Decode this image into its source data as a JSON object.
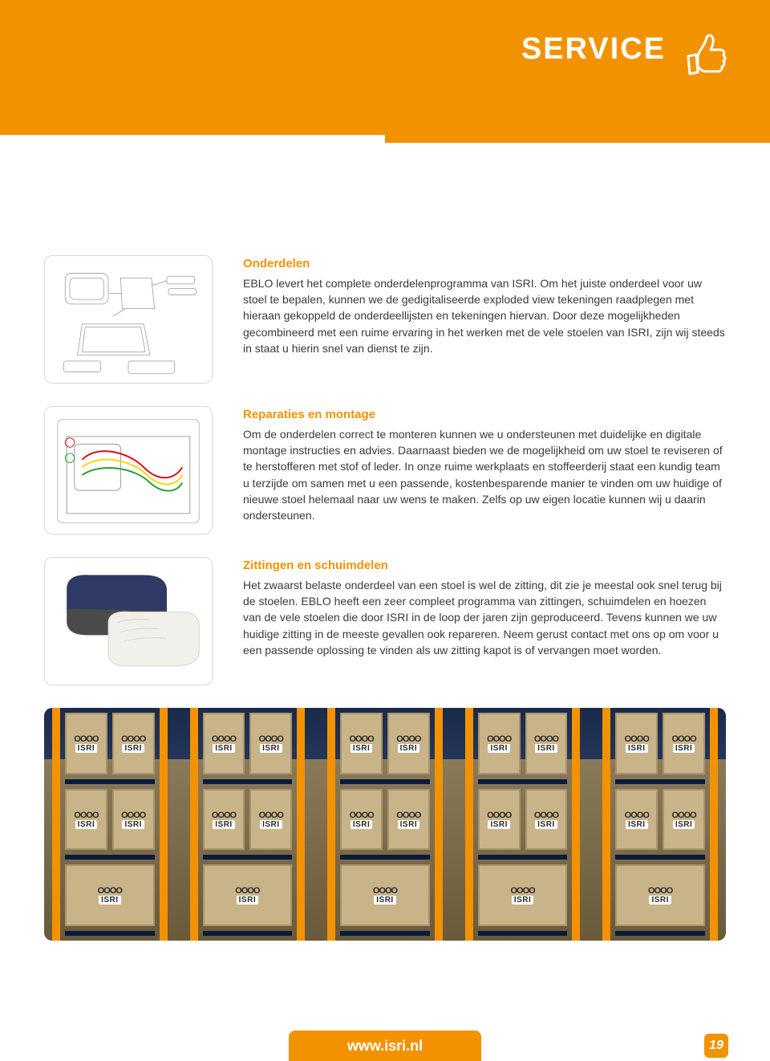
{
  "colors": {
    "accent": "#f39200",
    "text": "#3a3a3a",
    "heading": "#f39200",
    "thumb_border": "#d8d8d8",
    "box_fill": "#c9b48a",
    "box_border": "#a8946a",
    "rack_steel": "#0a1a3a"
  },
  "header": {
    "title": "SERVICE"
  },
  "sections": [
    {
      "heading": "Onderdelen",
      "body": "EBLO levert het complete onderdelenprogramma van ISRI. Om het juiste onderdeel voor uw stoel te bepalen, kunnen we de gedigitaliseerde exploded view tekeningen raadplegen met hieraan gekoppeld de onderdeellijsten en tekeningen hiervan. Door deze mogelijkheden gecombineerd met een ruime ervaring in het werken met de vele stoelen van ISRI, zijn wij steeds in staat u hierin snel van dienst te zijn."
    },
    {
      "heading": "Reparaties en montage",
      "body": "Om de onderdelen correct te monteren kunnen we u ondersteunen met duidelijke en digitale montage instructies en advies. Daarnaast bieden we de mogelijkheid om uw stoel te reviseren of te herstofferen met stof of leder. In onze ruime werkplaats en stoffeerderij staat een kundig team u terzijde om samen met u een passende, kostenbesparende manier te vinden om uw huidige of nieuwe stoel helemaal naar uw wens te maken. Zelfs op uw eigen locatie kunnen wij u daarin ondersteunen."
    },
    {
      "heading": "Zittingen en schuimdelen",
      "body": "Het zwaarst belaste onderdeel van een stoel is wel de zitting, dit zie je meestal ook snel terug bij de stoelen. EBLO heeft een zeer compleet programma van zittingen, schuimdelen en hoezen van de vele stoelen die door ISRI in de loop der jaren zijn geproduceerd. Tevens kunnen we uw huidige zitting in de meeste gevallen ook repareren. Neem gerust contact met ons op om voor u een passende oplossing te vinden als uw zitting kapot is of vervangen moet worden."
    }
  ],
  "warehouse": {
    "box_brand": "ISRI",
    "rack_columns": 5,
    "shelf_levels": 3
  },
  "footer": {
    "url": "www.isri.nl",
    "page": "19"
  }
}
